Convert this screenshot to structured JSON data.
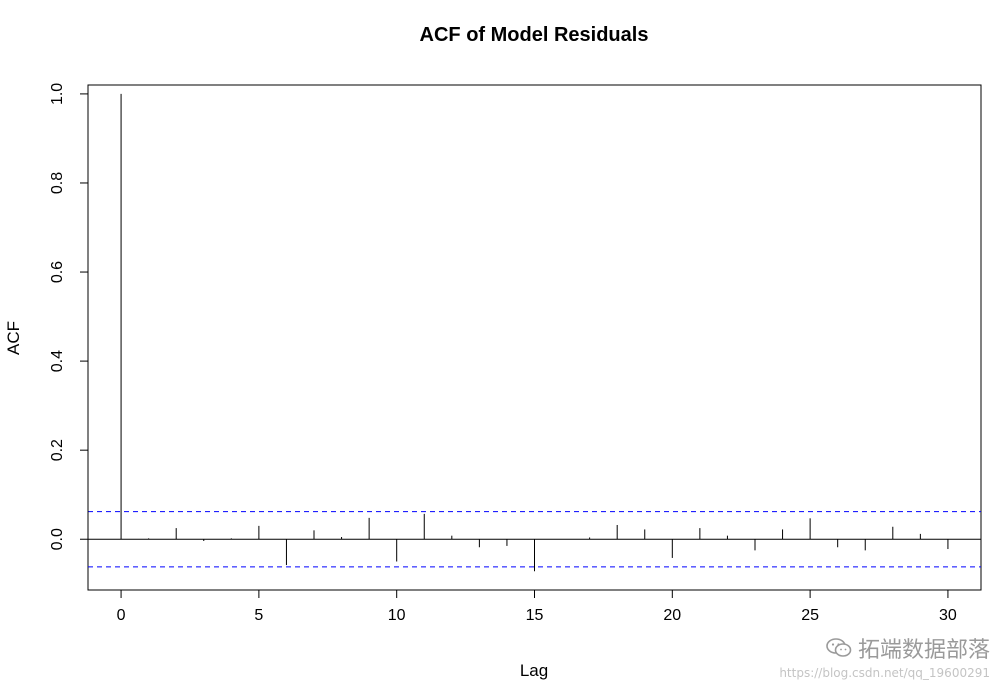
{
  "chart_data": {
    "type": "bar",
    "title": "ACF of Model Residuals",
    "xlabel": "Lag",
    "ylabel": "ACF",
    "xlim": [
      -1.2,
      31.2
    ],
    "ylim": [
      -0.114,
      1.02
    ],
    "x_ticks": [
      0,
      5,
      10,
      15,
      20,
      25,
      30
    ],
    "y_ticks": [
      0.0,
      0.2,
      0.4,
      0.6,
      0.8,
      1.0
    ],
    "x_tick_labels": [
      "0",
      "5",
      "10",
      "15",
      "20",
      "25",
      "30"
    ],
    "y_tick_labels": [
      "0.0",
      "0.2",
      "0.4",
      "0.6",
      "0.8",
      "1.0"
    ],
    "lags": [
      0,
      1,
      2,
      3,
      4,
      5,
      6,
      7,
      8,
      9,
      10,
      11,
      12,
      13,
      14,
      15,
      16,
      17,
      18,
      19,
      20,
      21,
      22,
      23,
      24,
      25,
      26,
      27,
      28,
      29,
      30
    ],
    "values": [
      1.0,
      0.002,
      0.025,
      -0.004,
      0.002,
      0.03,
      -0.058,
      0.02,
      0.005,
      0.048,
      -0.05,
      0.057,
      0.008,
      -0.018,
      -0.015,
      -0.072,
      0.0,
      0.004,
      0.032,
      0.022,
      -0.042,
      0.025,
      0.008,
      -0.025,
      0.022,
      0.047,
      -0.018,
      -0.025,
      0.028,
      0.012,
      -0.022
    ],
    "confidence_bound": 0.062,
    "colors": {
      "bars": "#000000",
      "confidence": "#0000ff",
      "zero_line": "#000000"
    },
    "grid": false
  },
  "watermark": {
    "brand": "拓端数据部落",
    "url": "https://blog.csdn.net/qq_19600291",
    "icon": "wechat-icon"
  }
}
